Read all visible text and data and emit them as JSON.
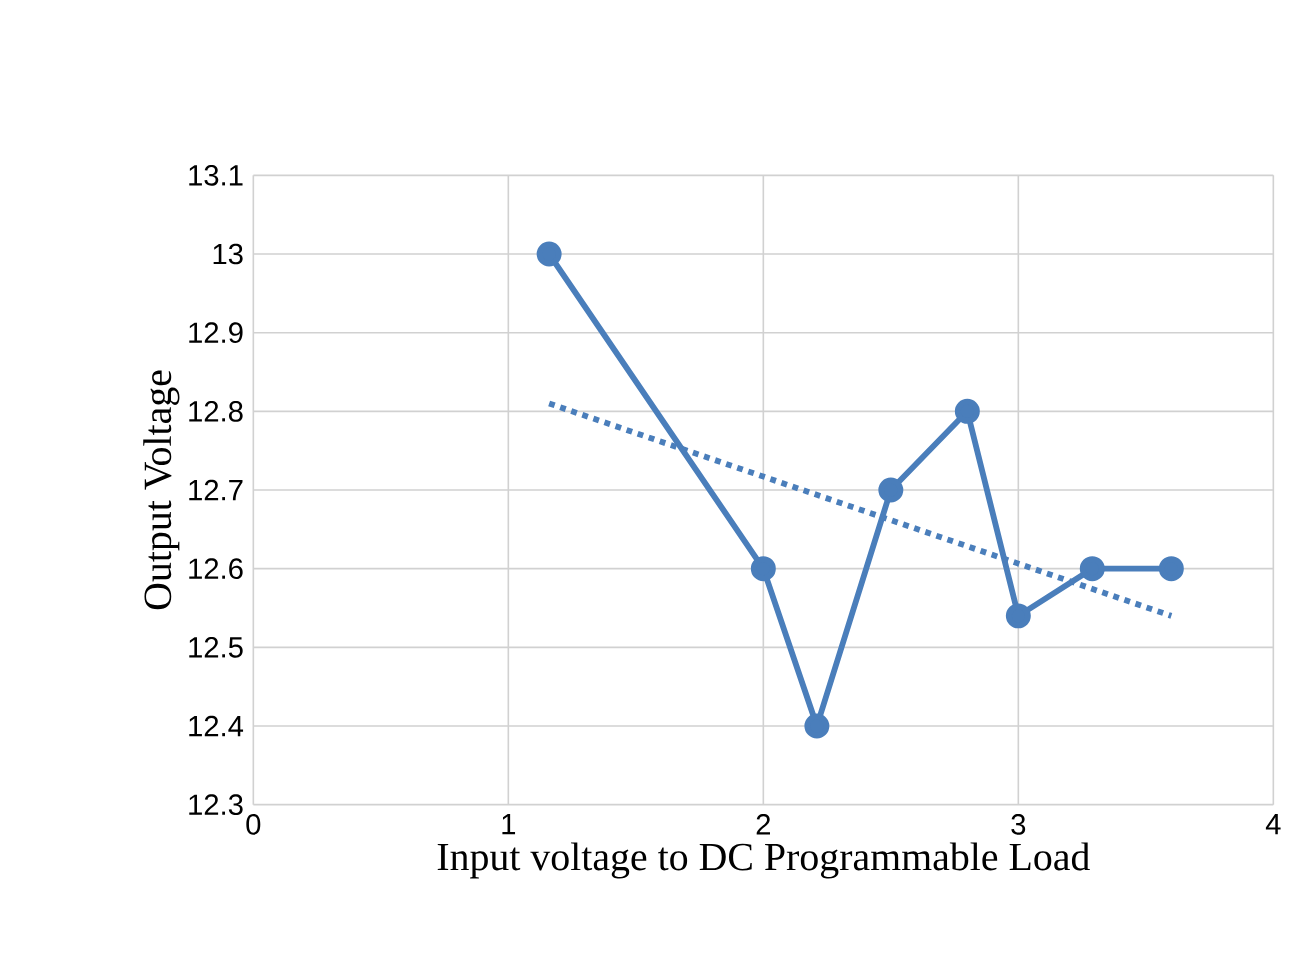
{
  "chart_data": {
    "type": "line",
    "xlabel": "Input voltage to DC Programmable Load",
    "ylabel": "Output Voltage",
    "series": [
      {
        "color": "#4a7ebb",
        "x": [
          1.16,
          2.0,
          2.21,
          2.5,
          2.8,
          3.0,
          3.29,
          3.6
        ],
        "values": [
          13.0,
          12.6,
          12.4,
          12.7,
          12.8,
          12.54,
          12.6,
          12.6
        ],
        "marker": "circle",
        "line_style": "solid"
      },
      {
        "color": "#4a7ebb",
        "x": [
          1.16,
          3.6
        ],
        "values": [
          12.81,
          12.54
        ],
        "marker": "none",
        "line_style": "dotted"
      }
    ],
    "xlim": [
      0,
      4
    ],
    "xticks": [
      0,
      1,
      2,
      3,
      4
    ],
    "ylim": [
      12.3,
      13.1
    ],
    "yticks": [
      12.3,
      12.4,
      12.5,
      12.6,
      12.7,
      12.8,
      12.9,
      13,
      13.1
    ],
    "grid": true
  }
}
